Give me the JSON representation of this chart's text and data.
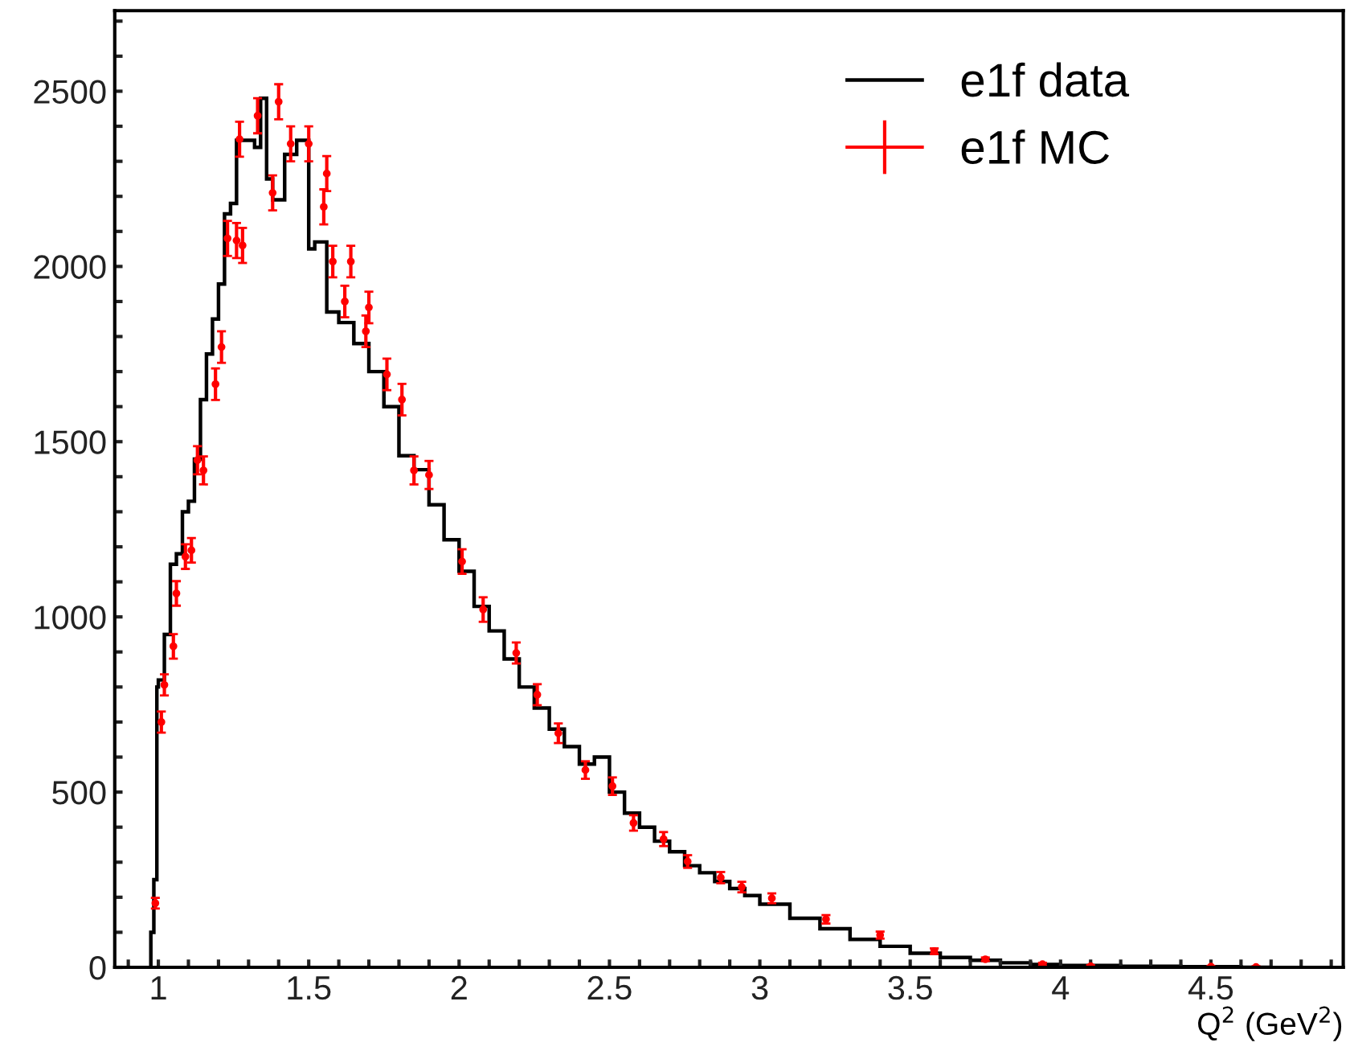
{
  "chart_data": {
    "type": "histogram",
    "xlabel": "Q$^{2}$ (GeV$^{2}$)",
    "xlim": [
      0.855,
      4.94
    ],
    "ylim": [
      0,
      2730
    ],
    "xticks": [
      {
        "value": 0.9,
        "label": null
      },
      1,
      {
        "value": 1.1,
        "label": null
      },
      {
        "value": 1.2,
        "label": null
      },
      {
        "value": 1.3,
        "label": null
      },
      {
        "value": 1.4,
        "label": null
      },
      1.5,
      {
        "value": 1.6,
        "label": null
      },
      {
        "value": 1.7,
        "label": null
      },
      {
        "value": 1.8,
        "label": null
      },
      {
        "value": 1.9,
        "label": null
      },
      2,
      {
        "value": 2.1,
        "label": null
      },
      {
        "value": 2.2,
        "label": null
      },
      {
        "value": 2.3,
        "label": null
      },
      {
        "value": 2.4,
        "label": null
      },
      2.5,
      {
        "value": 2.6,
        "label": null
      },
      {
        "value": 2.7,
        "label": null
      },
      {
        "value": 2.8,
        "label": null
      },
      {
        "value": 2.9,
        "label": null
      },
      3,
      {
        "value": 3.1,
        "label": null
      },
      {
        "value": 3.2,
        "label": null
      },
      {
        "value": 3.3,
        "label": null
      },
      {
        "value": 3.4,
        "label": null
      },
      3.5,
      {
        "value": 3.6,
        "label": null
      },
      {
        "value": 3.7,
        "label": null
      },
      {
        "value": 3.8,
        "label": null
      },
      {
        "value": 3.9,
        "label": null
      },
      4,
      {
        "value": 4.1,
        "label": null
      },
      {
        "value": 4.2,
        "label": null
      },
      {
        "value": 4.3,
        "label": null
      },
      {
        "value": 4.4,
        "label": null
      },
      4.5,
      {
        "value": 4.6,
        "label": null
      },
      {
        "value": 4.7,
        "label": null
      },
      {
        "value": 4.8,
        "label": null
      },
      {
        "value": 4.9,
        "label": null
      }
    ],
    "yticks": [
      0,
      {
        "value": 100,
        "label": null
      },
      {
        "value": 200,
        "label": null
      },
      {
        "value": 300,
        "label": null
      },
      {
        "value": 400,
        "label": null
      },
      500,
      {
        "value": 600,
        "label": null
      },
      {
        "value": 700,
        "label": null
      },
      {
        "value": 800,
        "label": null
      },
      {
        "value": 900,
        "label": null
      },
      1000,
      {
        "value": 1100,
        "label": null
      },
      {
        "value": 1200,
        "label": null
      },
      {
        "value": 1300,
        "label": null
      },
      {
        "value": 1400,
        "label": null
      },
      1500,
      {
        "value": 1600,
        "label": null
      },
      {
        "value": 1700,
        "label": null
      },
      {
        "value": 1800,
        "label": null
      },
      {
        "value": 1900,
        "label": null
      },
      2000,
      {
        "value": 2100,
        "label": null
      },
      {
        "value": 2200,
        "label": null
      },
      {
        "value": 2300,
        "label": null
      },
      {
        "value": 2400,
        "label": null
      },
      2500,
      {
        "value": 2600,
        "label": null
      },
      {
        "value": 2700,
        "label": null
      }
    ],
    "grid": false,
    "legend": "top right",
    "marker": "circle",
    "series": [
      {
        "name": "e1f data",
        "color": "#000000",
        "bins": [
          0.975,
          0.985,
          0.995,
          1.0,
          1.02,
          1.04,
          1.06,
          1.08,
          1.1,
          1.12,
          1.14,
          1.16,
          1.18,
          1.2,
          1.22,
          1.24,
          1.26,
          1.32,
          1.34,
          1.36,
          1.38,
          1.42,
          1.46,
          1.5,
          1.52,
          1.56,
          1.6,
          1.65,
          1.7,
          1.75,
          1.8,
          1.85,
          1.9,
          1.95,
          2.0,
          2.05,
          2.1,
          2.15,
          2.2,
          2.25,
          2.3,
          2.35,
          2.4,
          2.45,
          2.5,
          2.55,
          2.6,
          2.65,
          2.7,
          2.75,
          2.8,
          2.85,
          2.9,
          2.95,
          3.0,
          3.1,
          3.2,
          3.3,
          3.4,
          3.5,
          3.6,
          3.7,
          3.8,
          3.9,
          4.0,
          4.2,
          4.4,
          4.6,
          4.7
        ],
        "values": [
          100,
          250,
          800,
          820,
          950,
          1150,
          1180,
          1300,
          1330,
          1450,
          1620,
          1750,
          1850,
          1950,
          2150,
          2180,
          2360,
          2340,
          2480,
          2250,
          2190,
          2320,
          2360,
          2050,
          2070,
          1870,
          1840,
          1780,
          1700,
          1600,
          1460,
          1420,
          1320,
          1220,
          1130,
          1030,
          960,
          880,
          800,
          740,
          680,
          630,
          580,
          600,
          500,
          440,
          400,
          360,
          330,
          290,
          270,
          245,
          225,
          205,
          180,
          140,
          110,
          80,
          60,
          40,
          28,
          20,
          13,
          8,
          5,
          3,
          2,
          0
        ]
      },
      {
        "name": "e1f MC",
        "type": "scatter",
        "color": "#ff0000",
        "x": [
          0.99,
          1.01,
          1.02,
          1.05,
          1.06,
          1.09,
          1.11,
          1.13,
          1.15,
          1.19,
          1.21,
          1.23,
          1.26,
          1.27,
          1.28,
          1.33,
          1.38,
          1.4,
          1.44,
          1.5,
          1.55,
          1.56,
          1.58,
          1.62,
          1.64,
          1.69,
          1.7,
          1.76,
          1.81,
          1.85,
          1.9,
          2.01,
          2.08,
          2.19,
          2.26,
          2.33,
          2.42,
          2.51,
          2.58,
          2.68,
          2.76,
          2.87,
          2.94,
          3.04,
          3.22,
          3.4,
          3.58,
          3.75,
          3.94,
          4.1,
          4.5,
          4.65
        ],
        "values": [
          183,
          700,
          806,
          916,
          1067,
          1172,
          1190,
          1447,
          1418,
          1664,
          1770,
          2080,
          2074,
          2363,
          2060,
          2430,
          2210,
          2470,
          2350,
          2350,
          2170,
          2265,
          2014,
          1900,
          2014,
          1815,
          1883,
          1692,
          1620,
          1418,
          1405,
          1158,
          1021,
          897,
          778,
          668,
          563,
          517,
          412,
          366,
          302,
          256,
          229,
          197,
          137,
          92,
          46,
          23,
          9,
          3,
          2,
          1
        ],
        "errors": [
          15,
          30,
          30,
          35,
          35,
          35,
          35,
          40,
          40,
          45,
          45,
          50,
          50,
          50,
          50,
          50,
          50,
          50,
          50,
          50,
          50,
          50,
          45,
          45,
          45,
          45,
          45,
          45,
          45,
          40,
          40,
          35,
          35,
          30,
          30,
          28,
          25,
          25,
          22,
          20,
          18,
          16,
          15,
          14,
          12,
          10,
          8,
          5,
          4,
          3,
          2,
          2
        ]
      }
    ]
  }
}
